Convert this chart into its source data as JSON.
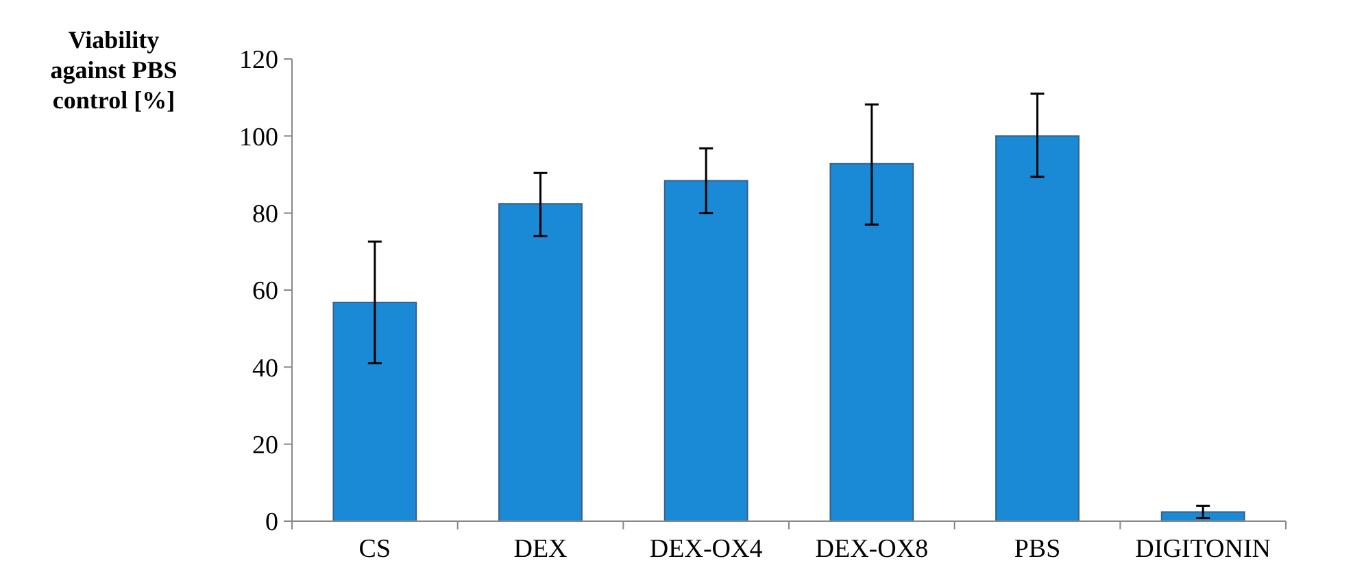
{
  "chart_data": {
    "type": "bar",
    "ylabel": "Viability against PBS control [%]",
    "categories": [
      "CS",
      "DEX",
      "DEX-OX4",
      "DEX-OX8",
      "PBS",
      "DIGITONIN"
    ],
    "values": [
      56.8,
      82.4,
      88.4,
      92.8,
      100,
      2.4
    ],
    "errors": [
      [
        41,
        72.6
      ],
      [
        74,
        90.4
      ],
      [
        80,
        96.8
      ],
      [
        77,
        108.2
      ],
      [
        89.4,
        111
      ],
      1.6
    ],
    "color": "#1a8ad6",
    "ylim": [
      0,
      120
    ],
    "yticks": [
      0,
      20,
      40,
      60,
      80,
      100,
      120
    ],
    "grid": false
  }
}
